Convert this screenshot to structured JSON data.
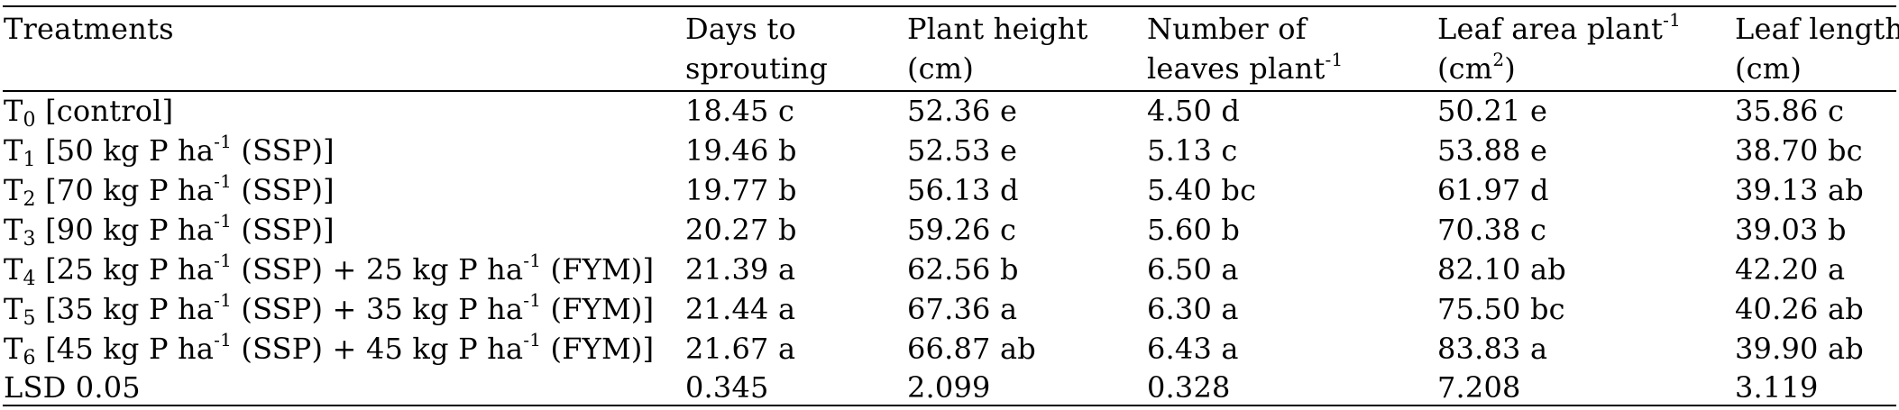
{
  "header": {
    "treatments": "Treatments",
    "days_line1": "Days to",
    "days_line2": "sprouting",
    "height_line1": "Plant height",
    "height_line2": "(cm)",
    "leaves_line1": "Number of",
    "leaves_line2_main": "leaves plant",
    "leaves_line2_sup": "-1",
    "area_line1_main": "Leaf area plant",
    "area_line1_sup": "-1",
    "area_line2_pre": "(cm",
    "area_line2_sup": "2",
    "area_line2_post": ")",
    "length_line1": "Leaf length",
    "length_line2": "(cm)"
  },
  "rows": [
    {
      "label": {
        "t": "T",
        "sub": "0",
        "a": " [control]"
      },
      "days": "18.45 c",
      "height": "52.36 e",
      "leaves": "4.50 d",
      "area": "50.21 e",
      "length": "35.86 c"
    },
    {
      "label": {
        "t": "T",
        "sub": "1",
        "a": " [50 kg P ha",
        "sup1": "-1",
        "b": " (SSP)]"
      },
      "days": "19.46 b",
      "height": "52.53 e",
      "leaves": "5.13 c",
      "area": "53.88 e",
      "length": "38.70 bc"
    },
    {
      "label": {
        "t": "T",
        "sub": "2",
        "a": " [70 kg P ha",
        "sup1": "-1",
        "b": " (SSP)]"
      },
      "days": "19.77 b",
      "height": "56.13 d",
      "leaves": "5.40 bc",
      "area": "61.97 d",
      "length": "39.13 ab"
    },
    {
      "label": {
        "t": "T",
        "sub": "3",
        "a": " [90 kg P ha",
        "sup1": "-1",
        "b": " (SSP)]"
      },
      "days": "20.27 b",
      "height": "59.26 c",
      "leaves": "5.60 b",
      "area": "70.38 c",
      "length": "39.03 b"
    },
    {
      "label": {
        "t": "T",
        "sub": "4",
        "a": " [25 kg P ha",
        "sup1": "-1",
        "b": " (SSP) + 25 kg P ha",
        "sup2": "-1",
        "c": " (FYM)]"
      },
      "days": "21.39 a",
      "height": "62.56 b",
      "leaves": "6.50 a",
      "area": "82.10 ab",
      "length": "42.20 a"
    },
    {
      "label": {
        "t": "T",
        "sub": "5",
        "a": " [35 kg P ha",
        "sup1": "-1",
        "b": " (SSP) + 35 kg P ha",
        "sup2": "-1",
        "c": " (FYM)]"
      },
      "days": "21.44 a",
      "height": "67.36 a",
      "leaves": "6.30 a",
      "area": "75.50 bc",
      "length": "40.26 ab"
    },
    {
      "label": {
        "t": "T",
        "sub": "6",
        "a": " [45 kg P ha",
        "sup1": "-1",
        "b": " (SSP) + 45 kg P ha",
        "sup2": "-1",
        "c": " (FYM)]"
      },
      "days": "21.67 a",
      "height": "66.87 ab",
      "leaves": "6.43 a",
      "area": "83.83 a",
      "length": "39.90 ab"
    },
    {
      "label": {
        "t": "LSD 0.05"
      },
      "days": "0.345",
      "height": "2.099",
      "leaves": "0.328",
      "area": "7.208",
      "length": "3.119"
    }
  ]
}
